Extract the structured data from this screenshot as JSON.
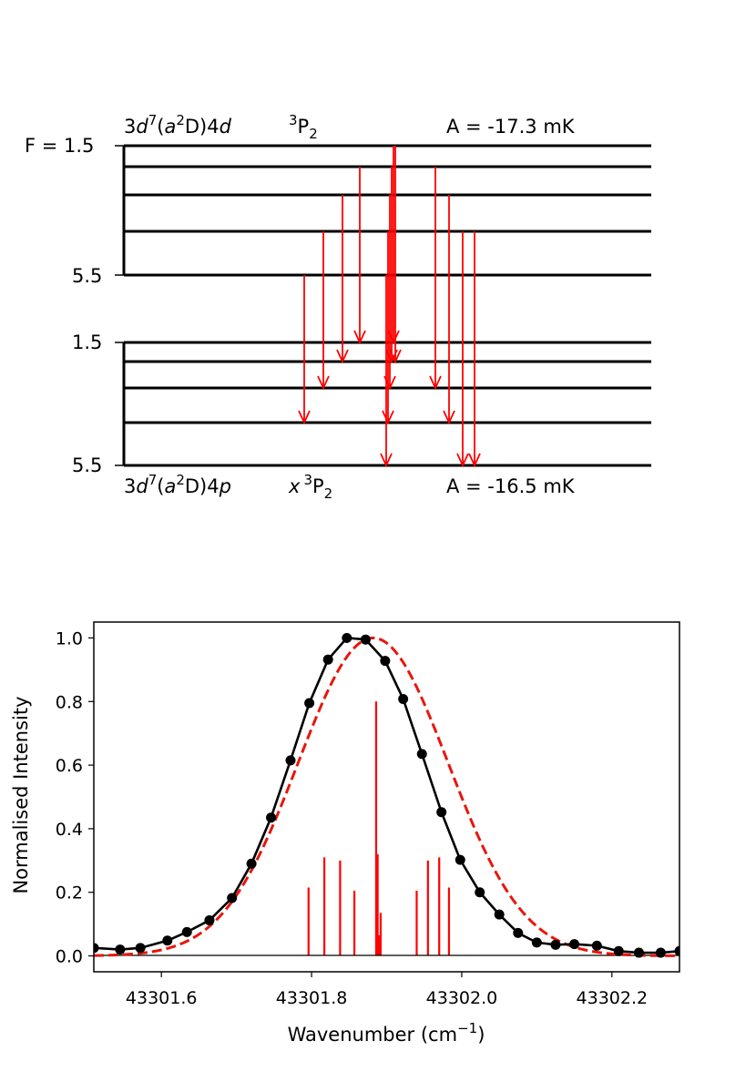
{
  "chart_data": [
    {
      "type": "energy-level-diagram",
      "upper": {
        "config_html": "3<tspan font-style=\"italic\">d</tspan><tspan dy=\"-9\" font-size=\"15\">7</tspan><tspan dy=\"9\">(</tspan><tspan font-style=\"italic\">a</tspan><tspan dy=\"-9\" font-size=\"15\">2</tspan><tspan dy=\"9\">D)4</tspan><tspan font-style=\"italic\">d</tspan>",
        "term_html": "<tspan dy=\"-9\" font-size=\"15\">3</tspan><tspan dy=\"9\">P</tspan><tspan dy=\"6\" font-size=\"15\">2</tspan>",
        "hfs_text": "A = -17.3 mK",
        "f_top_label": "F = 1.5",
        "f_bottom_label": "5.5",
        "levels": [
          "1.5",
          "2.5",
          "3.5",
          "4.5",
          "5.5"
        ]
      },
      "lower": {
        "config_html": "3<tspan font-style=\"italic\">d</tspan><tspan dy=\"-9\" font-size=\"15\">7</tspan><tspan dy=\"9\">(</tspan><tspan font-style=\"italic\">a</tspan><tspan dy=\"-9\" font-size=\"15\">2</tspan><tspan dy=\"9\">D)4</tspan><tspan font-style=\"italic\">p</tspan>",
        "term_html": "<tspan font-style=\"italic\">x</tspan><tspan dx=\"4\" dy=\"-9\" font-size=\"15\">3</tspan><tspan dy=\"9\">P</tspan><tspan dy=\"6\" font-size=\"15\">2</tspan>",
        "hfs_text": "A = -16.5 mK",
        "f_top_label": "1.5",
        "f_bottom_label": "5.5",
        "levels": [
          "1.5",
          "2.5",
          "3.5",
          "4.5",
          "5.5"
        ]
      },
      "transitions": [
        {
          "from": "5.5",
          "to": "4.5",
          "wavenumber": 43301.796
        },
        {
          "from": "4.5",
          "to": "3.5",
          "wavenumber": 43301.817
        },
        {
          "from": "3.5",
          "to": "2.5",
          "wavenumber": 43301.838
        },
        {
          "from": "2.5",
          "to": "1.5",
          "wavenumber": 43301.857
        },
        {
          "from": "5.5",
          "to": "5.5",
          "wavenumber": 43301.886
        },
        {
          "from": "4.5",
          "to": "4.5",
          "wavenumber": 43301.888
        },
        {
          "from": "3.5",
          "to": "3.5",
          "wavenumber": 43301.89
        },
        {
          "from": "2.5",
          "to": "2.5",
          "wavenumber": 43301.892
        },
        {
          "from": "1.5",
          "to": "1.5",
          "wavenumber": 43301.894
        },
        {
          "from": "1.5",
          "to": "2.5",
          "wavenumber": 43301.896
        },
        {
          "from": "2.5",
          "to": "3.5",
          "wavenumber": 43301.94
        },
        {
          "from": "3.5",
          "to": "4.5",
          "wavenumber": 43301.955
        },
        {
          "from": "4.5",
          "to": "5.5",
          "wavenumber": 43301.97
        },
        {
          "from": "4.5",
          "to": "5.5",
          "wavenumber": 43301.983
        }
      ]
    },
    {
      "type": "line",
      "xlabel": "Wavenumber (cm",
      "xlabel_sup": "−1",
      "xlabel_end": ")",
      "ylabel": "Normalised Intensity",
      "xlim": [
        43301.51,
        43302.29
      ],
      "ylim": [
        -0.05,
        1.05
      ],
      "xticks": [
        43301.6,
        43301.8,
        43302.0,
        43302.2
      ],
      "xtick_labels": [
        "43301.6",
        "43301.8",
        "43302.0",
        "43302.2"
      ],
      "yticks": [
        0.0,
        0.2,
        0.4,
        0.6,
        0.8,
        1.0
      ],
      "ytick_labels": [
        "0.0",
        "0.2",
        "0.4",
        "0.6",
        "0.8",
        "1.0"
      ],
      "series": [
        {
          "style": "black solid line with markers",
          "color": "#000000",
          "x": [
            43301.51,
            43301.545,
            43301.572,
            43301.608,
            43301.634,
            43301.664,
            43301.694,
            43301.72,
            43301.746,
            43301.772,
            43301.797,
            43301.822,
            43301.847,
            43301.872,
            43301.898,
            43301.922,
            43301.947,
            43301.973,
            43301.998,
            43302.024,
            43302.05,
            43302.075,
            43302.1,
            43302.125,
            43302.15,
            43302.18,
            43302.209,
            43302.236,
            43302.265,
            43302.29
          ],
          "y": [
            0.025,
            0.02,
            0.025,
            0.048,
            0.075,
            0.112,
            0.182,
            0.29,
            0.435,
            0.615,
            0.795,
            0.932,
            1.0,
            0.995,
            0.928,
            0.808,
            0.635,
            0.452,
            0.302,
            0.2,
            0.13,
            0.072,
            0.042,
            0.035,
            0.037,
            0.032,
            0.015,
            0.01,
            0.01,
            0.015
          ],
          "markers_count": 27
        },
        {
          "style": "red dashed fit",
          "color": "#e8160c",
          "center": 43301.882,
          "width": 0.125,
          "amplitude": 1.0,
          "baseline": 0.0
        }
      ],
      "sticks": {
        "color": "#ff0000",
        "x": [
          43301.796,
          43301.817,
          43301.838,
          43301.857,
          43301.886,
          43301.888,
          43301.89,
          43301.892,
          43301.894,
          43301.896,
          43301.94,
          43301.955,
          43301.97,
          43301.983
        ],
        "y": [
          0.215,
          0.31,
          0.3,
          0.205,
          0.8,
          0.32,
          0.065,
          0.135,
          0.0,
          0.0,
          0.205,
          0.3,
          0.31,
          0.215
        ]
      }
    }
  ]
}
